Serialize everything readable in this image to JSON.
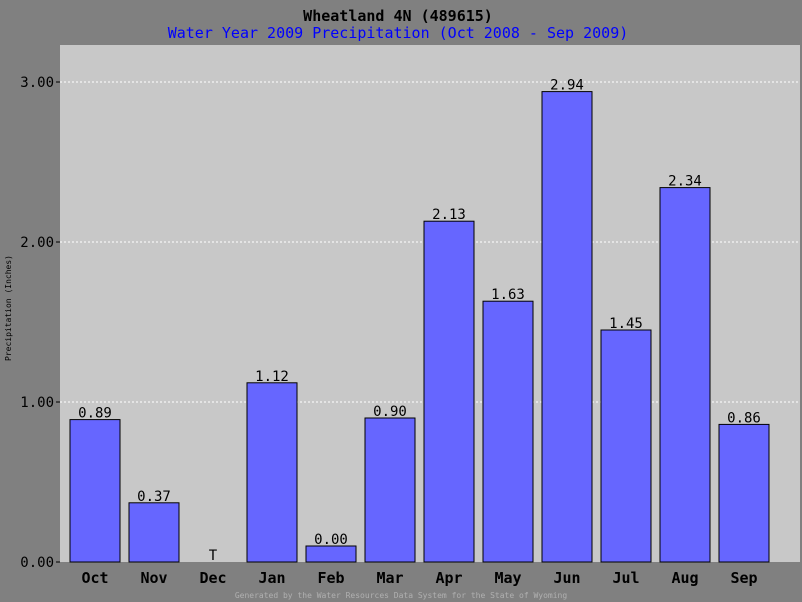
{
  "chart_data": {
    "type": "bar",
    "title": "Wheatland 4N (489615)",
    "subtitle": "Water Year 2009 Precipitation (Oct 2008 - Sep 2009)",
    "ylabel": "Precipitation (Inches)",
    "xlabel": "",
    "footer": "Generated by the Water Resources Data System for the State of Wyoming",
    "categories": [
      "Oct",
      "Nov",
      "Dec",
      "Jan",
      "Feb",
      "Mar",
      "Apr",
      "May",
      "Jun",
      "Jul",
      "Aug",
      "Sep"
    ],
    "values": [
      0.89,
      0.37,
      0,
      1.12,
      0.0,
      0.9,
      2.13,
      1.63,
      2.94,
      1.45,
      2.34,
      0.86
    ],
    "value_labels": [
      "0.89",
      "0.37",
      "T",
      "1.12",
      "0.00",
      "0.90",
      "2.13",
      "1.63",
      "2.94",
      "1.45",
      "2.34",
      "0.86"
    ],
    "yticks": [
      0,
      1,
      2,
      3
    ],
    "ytick_labels": [
      "0.00",
      "1.00",
      "2.00",
      "3.00"
    ],
    "ylim": [
      0,
      3.0
    ],
    "grid": true,
    "legend": "none",
    "colors": {
      "bar_fill": "#6666ff",
      "bar_stroke": "#000000",
      "plot_background": "#c8c8c8",
      "page_background": "#808080",
      "grid": "#ffffff",
      "title": "#000000",
      "subtitle": "#0000ff",
      "footer": "#b0b0b0"
    }
  }
}
